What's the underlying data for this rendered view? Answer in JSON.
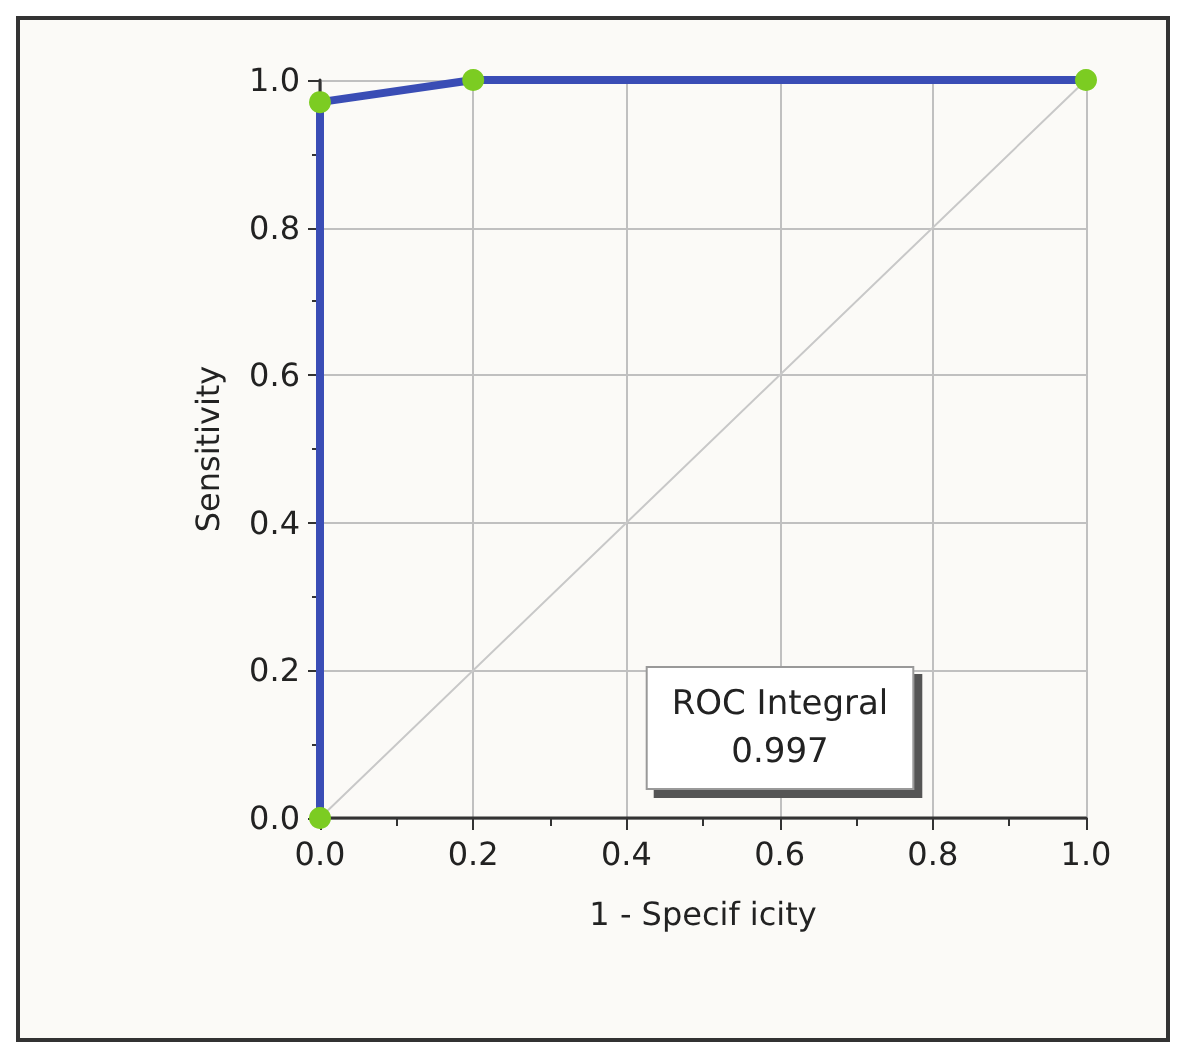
{
  "chart_data": {
    "type": "line",
    "xlabel": "1 - Specif icity",
    "ylabel": "Sensitivity",
    "xlim": [
      0,
      1
    ],
    "ylim": [
      0,
      1
    ],
    "xticks": [
      {
        "value": 0,
        "label": "0.0"
      },
      0.2,
      0.4,
      0.6,
      0.8,
      {
        "value": 1,
        "label": "1.0"
      }
    ],
    "yticks": [
      {
        "value": 0,
        "label": "0.0"
      },
      0.2,
      0.4,
      0.6,
      0.8,
      {
        "value": 1,
        "label": "1.0"
      }
    ],
    "grid": true,
    "marker": "circle",
    "line_style": "solid",
    "series": [
      {
        "color": "#3a4db5",
        "x": [
          0,
          0,
          0.2,
          1
        ],
        "values": [
          0,
          0.97,
          1,
          1
        ]
      },
      {
        "type": "line",
        "color": "#c8c8c8",
        "x": [
          0,
          1
        ],
        "values": [
          0,
          1
        ],
        "marker": "none"
      }
    ],
    "annotations": [
      "ROC Integral\n0.997"
    ]
  }
}
